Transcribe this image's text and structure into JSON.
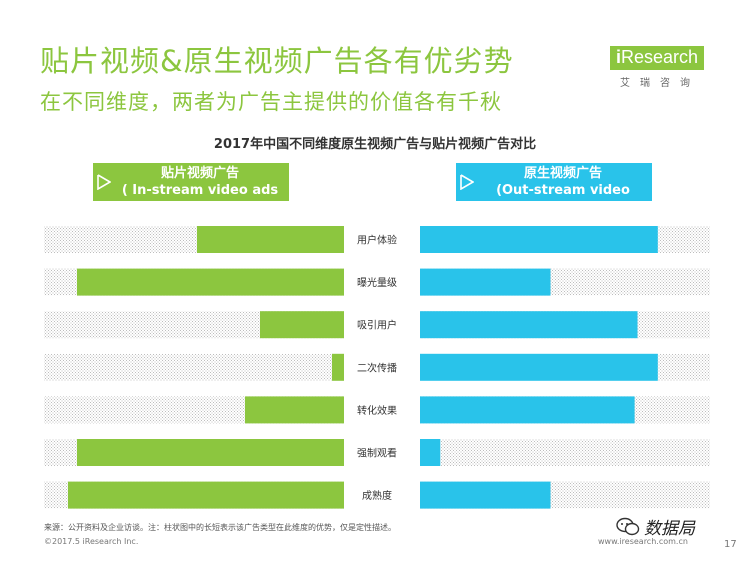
{
  "header": {
    "title": "贴片视频&原生视频广告各有优劣势",
    "subtitle": "在不同维度，两者为广告主提供的价值各有千秋"
  },
  "logo": {
    "main": "Research",
    "i": "i",
    "sub": "艾瑞咨询"
  },
  "legend": {
    "left": {
      "line1": "贴片视频广告",
      "line2": "( In-stream video ads )",
      "color": "#8cc63f"
    },
    "right": {
      "line1": "原生视频广告",
      "line2": "(Out-stream video ads)",
      "color": "#29c3ea"
    }
  },
  "chart_data": {
    "type": "bar",
    "title": "2017年中国不同维度原生视频广告与贴片视频广告对比",
    "categories": [
      "用户体验",
      "曝光量级",
      "吸引用户",
      "二次传播",
      "转化效果",
      "强制观看",
      "成熟度"
    ],
    "series": [
      {
        "name": "贴片视频广告 ( In-stream video ads )",
        "color": "#8cc63f",
        "values": [
          0.49,
          0.89,
          0.28,
          0.04,
          0.33,
          0.89,
          0.92
        ]
      },
      {
        "name": "原生视频广告 (Out-stream video ads)",
        "color": "#29c3ea",
        "values": [
          0.82,
          0.45,
          0.75,
          0.82,
          0.74,
          0.07,
          0.45
        ]
      }
    ],
    "ylim": [
      0,
      1
    ],
    "xlabel": "",
    "ylabel": ""
  },
  "footer": {
    "note": "来源：公开资料及企业访谈。注：柱状图中的长短表示该广告类型在此维度的优势，仅是定性描述。",
    "copyright": "©2017.5 iResearch Inc.",
    "url": "www.iresearch.com.cn",
    "page": "17",
    "wechat": "数据局"
  }
}
